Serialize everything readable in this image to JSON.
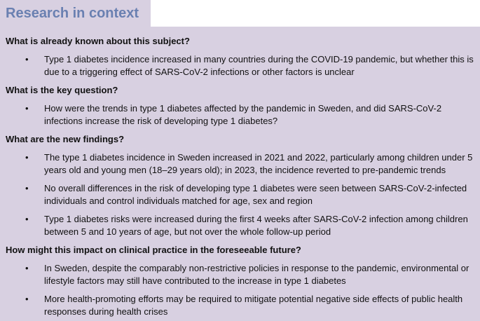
{
  "header": {
    "title": "Research in context"
  },
  "sections": [
    {
      "heading": "What is already known about this subject?",
      "items": [
        "Type 1 diabetes incidence increased in many countries during the COVID-19 pandemic, but whether this is due to a triggering effect of SARS-CoV-2 infections or other factors is unclear"
      ]
    },
    {
      "heading": "What is the key question?",
      "items": [
        "How were the trends in type 1 diabetes affected by the pandemic in Sweden, and did SARS-CoV-2 infections increase the risk of developing type 1 diabetes?"
      ]
    },
    {
      "heading": "What are the new findings?",
      "items": [
        "The type 1 diabetes incidence in Sweden increased in 2021 and 2022, particularly among children under 5 years old and young men (18–29 years old); in 2023, the incidence reverted to pre-pandemic trends",
        "No overall differences in the risk of developing type 1 diabetes were seen between SARS-CoV-2-infected individuals and control individuals matched for age, sex and region",
        "Type 1 diabetes risks were increased during the first 4 weeks after SARS-CoV-2 infection among children between 5 and 10 years of age, but not over the whole follow-up period"
      ]
    },
    {
      "heading": "How might this impact on clinical practice in the foreseeable future?",
      "items": [
        "In Sweden, despite the comparably non-restrictive policies in response to the pandemic, environmental or lifestyle factors may still have contributed to the increase in type 1 diabetes",
        "More health-promoting efforts may be required to mitigate potential negative side effects of public health responses during health crises"
      ]
    }
  ]
}
